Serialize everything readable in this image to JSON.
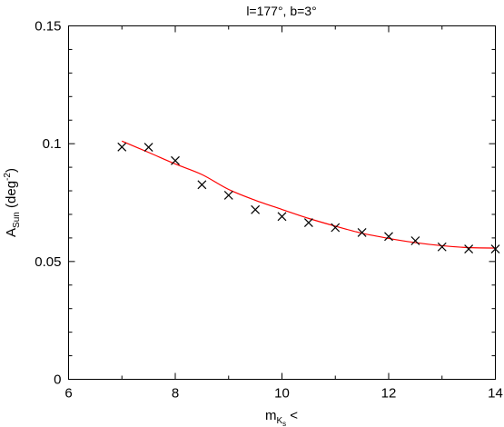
{
  "chart_data": {
    "type": "scatter",
    "title": "l=177°, b=3°",
    "xlabel": {
      "main": "m",
      "sub1": "K",
      "sub2": "s",
      "suffix": " <"
    },
    "ylabel": {
      "main": "A",
      "sub": "Sun",
      "suffix": " (deg",
      "sup": "-2",
      "close": ")"
    },
    "xlim": [
      6,
      14
    ],
    "ylim": [
      0,
      0.15
    ],
    "x_ticks": [
      6,
      8,
      10,
      12,
      14
    ],
    "x_tick_labels": [
      "6",
      "8",
      "10",
      "12",
      "14"
    ],
    "y_ticks": [
      0,
      0.05,
      0.1,
      0.15
    ],
    "y_tick_labels": [
      "0",
      "0.05",
      "0.1",
      "0.15"
    ],
    "grid": false,
    "series": [
      {
        "kind": "points",
        "marker": "x",
        "color": "#000000",
        "x": [
          7,
          7.5,
          8,
          8.5,
          9,
          9.5,
          10,
          10.5,
          11,
          11.5,
          12,
          12.5,
          13,
          13.5,
          14
        ],
        "y": [
          0.0986,
          0.0985,
          0.0928,
          0.0826,
          0.0781,
          0.072,
          0.0691,
          0.0665,
          0.0644,
          0.0623,
          0.0606,
          0.0588,
          0.0562,
          0.0553,
          0.0553
        ]
      },
      {
        "kind": "line",
        "color": "#ff0000",
        "x": [
          7,
          7.5,
          8,
          8.5,
          9,
          9.5,
          10,
          10.5,
          11,
          11.5,
          12,
          12.5,
          13,
          13.5,
          14
        ],
        "y": [
          0.1011,
          0.0963,
          0.0914,
          0.0869,
          0.0806,
          0.076,
          0.0721,
          0.0683,
          0.065,
          0.062,
          0.0598,
          0.058,
          0.0567,
          0.0559,
          0.0557
        ]
      }
    ]
  }
}
